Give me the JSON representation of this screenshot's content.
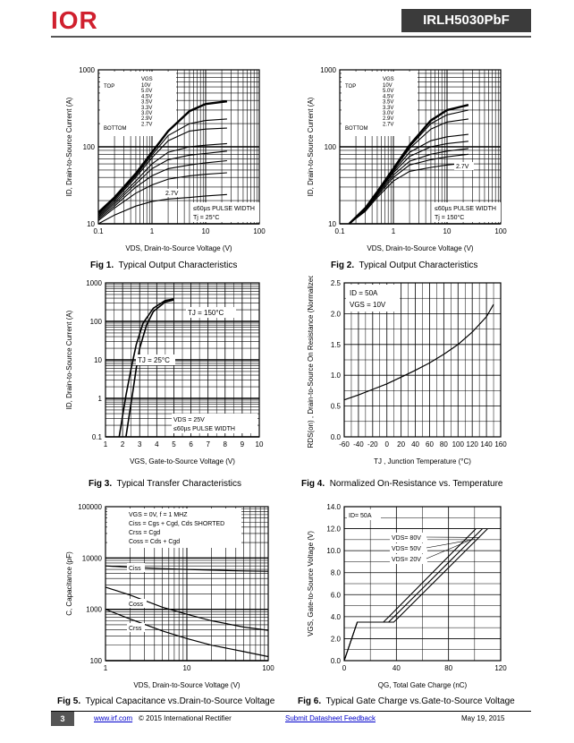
{
  "header": {
    "logo_text": "IOR",
    "part_number": "IRLH5030PbF"
  },
  "figures": [
    {
      "id": "fig1",
      "label": "Fig 1.",
      "caption": "Typical Output Characteristics"
    },
    {
      "id": "fig2",
      "label": "Fig 2.",
      "caption": "Typical Output Characteristics"
    },
    {
      "id": "fig3",
      "label": "Fig 3.",
      "caption": "Typical Transfer Characteristics"
    },
    {
      "id": "fig4",
      "label": "Fig 4.",
      "caption": "Normalized On-Resistance vs. Temperature"
    },
    {
      "id": "fig5",
      "label": "Fig 5.",
      "caption": "Typical Capacitance vs.Drain-to-Source Voltage"
    },
    {
      "id": "fig6",
      "label": "Fig 6.",
      "caption": "Typical Gate Charge vs.Gate-to-Source Voltage"
    }
  ],
  "footer": {
    "page": "3",
    "website": "www.irf.com",
    "copyright": "© 2015 International Rectifier",
    "feedback_link": "Submit Datasheet Feedback",
    "date": "May 19, 2015"
  },
  "chart_data": [
    {
      "type": "line",
      "title": "",
      "xlabel": "VDS, Drain-to-Source Voltage (V)",
      "ylabel": "ID, Drain-to-Source Current (A)",
      "xscale": "log",
      "yscale": "log",
      "xlim": [
        0.1,
        100
      ],
      "ylim": [
        10,
        1000
      ],
      "xticks": [
        "0.1",
        "1",
        "10",
        "100"
      ],
      "yticks": [
        "10",
        "100",
        "1000"
      ],
      "legend_title": "VGS",
      "legend_top": "TOP",
      "legend_bottom": "BOTTOM",
      "legend": [
        "10V",
        "5.0V",
        "4.5V",
        "3.5V",
        "3.3V",
        "3.0V",
        "2.9V",
        "2.7V"
      ],
      "annotations": [
        "2.7V",
        "≤60µs PULSE WIDTH",
        "Tj = 25°C"
      ],
      "series": [
        {
          "name": "10V",
          "x": [
            0.1,
            0.2,
            0.5,
            1,
            2,
            5,
            10,
            25
          ],
          "y": [
            14,
            22,
            45,
            85,
            160,
            290,
            360,
            390
          ]
        },
        {
          "name": "5.0V",
          "x": [
            0.1,
            0.2,
            0.5,
            1,
            2,
            5,
            10,
            25
          ],
          "y": [
            13.5,
            21,
            42,
            78,
            140,
            200,
            220,
            230
          ]
        },
        {
          "name": "4.5V",
          "x": [
            0.1,
            0.2,
            0.5,
            1,
            2,
            5,
            10,
            25
          ],
          "y": [
            13,
            20,
            40,
            72,
            120,
            160,
            170,
            175
          ]
        },
        {
          "name": "3.5V",
          "x": [
            0.1,
            0.2,
            0.5,
            1,
            2,
            5,
            10,
            25
          ],
          "y": [
            12.5,
            19,
            36,
            60,
            85,
            100,
            105,
            110
          ]
        },
        {
          "name": "3.3V",
          "x": [
            0.1,
            0.2,
            0.5,
            1,
            2,
            5,
            10,
            25
          ],
          "y": [
            12,
            18,
            33,
            52,
            68,
            78,
            82,
            88
          ]
        },
        {
          "name": "3.0V",
          "x": [
            0.1,
            0.2,
            0.5,
            1,
            2,
            5,
            10,
            25
          ],
          "y": [
            11.5,
            17,
            30,
            42,
            52,
            58,
            62,
            66
          ]
        },
        {
          "name": "2.9V",
          "x": [
            0.1,
            0.2,
            0.5,
            1,
            2,
            5,
            10,
            25
          ],
          "y": [
            11,
            16,
            25,
            32,
            38,
            42,
            44,
            46
          ]
        },
        {
          "name": "2.7V",
          "x": [
            0.1,
            0.2,
            0.5,
            1,
            2,
            5,
            10,
            25
          ],
          "y": [
            10,
            13,
            17,
            19.5,
            21,
            22,
            23,
            24
          ]
        }
      ]
    },
    {
      "type": "line",
      "title": "",
      "xlabel": "VDS, Drain-to-Source Voltage (V)",
      "ylabel": "ID, Drain-to-Source Current (A)",
      "xscale": "log",
      "yscale": "log",
      "xlim": [
        0.1,
        100
      ],
      "ylim": [
        10,
        1000
      ],
      "xticks": [
        "0.1",
        "1",
        "10",
        "100"
      ],
      "yticks": [
        "10",
        "100",
        "1000"
      ],
      "legend_title": "VGS",
      "legend_top": "TOP",
      "legend_bottom": "BOTTOM",
      "legend": [
        "10V",
        "5.0V",
        "4.5V",
        "3.5V",
        "3.3V",
        "3.0V",
        "2.9V",
        "2.7V"
      ],
      "annotations": [
        "2.7V",
        "≤60µs PULSE WIDTH",
        "Tj = 150°C"
      ],
      "series": [
        {
          "name": "10V",
          "x": [
            0.15,
            0.3,
            0.5,
            1,
            2,
            5,
            10,
            25
          ],
          "y": [
            10,
            16,
            26,
            52,
            105,
            220,
            300,
            350
          ]
        },
        {
          "name": "5.0V",
          "x": [
            0.15,
            0.3,
            0.5,
            1,
            2,
            5,
            10,
            25
          ],
          "y": [
            10,
            16,
            26,
            51,
            100,
            200,
            260,
            300
          ]
        },
        {
          "name": "4.5V",
          "x": [
            0.15,
            0.3,
            0.5,
            1,
            2,
            5,
            10,
            25
          ],
          "y": [
            10,
            16,
            25.5,
            50,
            95,
            170,
            210,
            230
          ]
        },
        {
          "name": "3.5V",
          "x": [
            0.15,
            0.3,
            0.5,
            1,
            2,
            5,
            10,
            25
          ],
          "y": [
            10,
            15.5,
            25,
            48,
            85,
            120,
            135,
            145
          ]
        },
        {
          "name": "3.3V",
          "x": [
            0.15,
            0.3,
            0.5,
            1,
            2,
            5,
            10,
            25
          ],
          "y": [
            10,
            15.5,
            25,
            46,
            75,
            100,
            110,
            118
          ]
        },
        {
          "name": "3.0V",
          "x": [
            0.15,
            0.3,
            0.5,
            1,
            2,
            5,
            10,
            25
          ],
          "y": [
            10,
            15,
            24,
            43,
            65,
            80,
            88,
            95
          ]
        },
        {
          "name": "2.9V",
          "x": [
            0.15,
            0.3,
            0.5,
            1,
            2,
            5,
            10,
            25
          ],
          "y": [
            10,
            15,
            23,
            40,
            58,
            68,
            74,
            80
          ]
        },
        {
          "name": "2.7V",
          "x": [
            0.15,
            0.3,
            0.5,
            1,
            2,
            5,
            10,
            25
          ],
          "y": [
            10,
            14.5,
            22,
            36,
            48,
            54,
            58,
            62
          ]
        }
      ]
    },
    {
      "type": "line",
      "title": "",
      "xlabel": "VGS, Gate-to-Source Voltage (V)",
      "ylabel": "ID, Drain-to-Source Current (A)",
      "xscale": "linear",
      "yscale": "log",
      "xlim": [
        1,
        10
      ],
      "ylim": [
        0.1,
        1000
      ],
      "xticks": [
        "1",
        "2",
        "3",
        "4",
        "5",
        "6",
        "7",
        "8",
        "9",
        "10"
      ],
      "yticks": [
        "0.1",
        "1",
        "10",
        "100",
        "1000"
      ],
      "annotations": [
        "TJ = 150°C",
        "TJ = 25°C",
        "VDS = 25V",
        "≤60µs PULSE WIDTH"
      ],
      "series": [
        {
          "name": "TJ = 150°C",
          "x": [
            1.8,
            2.0,
            2.2,
            2.5,
            2.8,
            3.2,
            3.8,
            4.5,
            5.0
          ],
          "y": [
            0.1,
            0.35,
            1.2,
            6,
            25,
            90,
            220,
            350,
            380
          ]
        },
        {
          "name": "TJ = 25°C",
          "x": [
            2.2,
            2.4,
            2.6,
            2.8,
            3.0,
            3.4,
            3.8,
            4.5,
            5.0
          ],
          "y": [
            0.1,
            0.4,
            1.5,
            6,
            20,
            80,
            180,
            320,
            360
          ]
        }
      ]
    },
    {
      "type": "line",
      "title": "",
      "xlabel": "TJ , Junction Temperature (°C)",
      "ylabel": "RDS(on) , Drain-to-Source On Resistance (Normalized)",
      "xscale": "linear",
      "yscale": "linear",
      "xlim": [
        -60,
        160
      ],
      "ylim": [
        0.0,
        2.5
      ],
      "xticks": [
        "-60",
        "-40",
        "-20",
        "0",
        "20",
        "40",
        "60",
        "80",
        "100",
        "120",
        "140",
        "160"
      ],
      "yticks": [
        "0.0",
        "0.5",
        "1.0",
        "1.5",
        "2.0",
        "2.5"
      ],
      "annotations": [
        "ID = 50A",
        "VGS = 10V"
      ],
      "series": [
        {
          "name": "",
          "x": [
            -60,
            -40,
            -20,
            0,
            20,
            40,
            60,
            80,
            100,
            120,
            140,
            150
          ],
          "y": [
            0.6,
            0.68,
            0.77,
            0.86,
            0.97,
            1.08,
            1.2,
            1.34,
            1.5,
            1.7,
            1.95,
            2.15
          ]
        }
      ]
    },
    {
      "type": "line",
      "title": "",
      "xlabel": "VDS, Drain-to-Source Voltage (V)",
      "ylabel": "C, Capacitance (pF)",
      "xscale": "log",
      "yscale": "log",
      "xlim": [
        1,
        100
      ],
      "ylim": [
        100,
        100000
      ],
      "xticks": [
        "1",
        "10",
        "100"
      ],
      "yticks": [
        "100",
        "1000",
        "10000",
        "100000"
      ],
      "legend_lines": [
        "VGS = 0V, f = 1 MHZ",
        "Ciss = Cgs + Cgd, Cds SHORTED",
        "Crss = Cgd",
        "Coss = Cds + Cgd"
      ],
      "series": [
        {
          "name": "Ciss",
          "x": [
            1,
            2,
            5,
            10,
            20,
            50,
            100
          ],
          "y": [
            7000,
            6600,
            6200,
            6000,
            5800,
            5600,
            5500
          ]
        },
        {
          "name": "Coss",
          "x": [
            1,
            2,
            5,
            10,
            20,
            50,
            100
          ],
          "y": [
            2700,
            1900,
            1100,
            800,
            600,
            450,
            390
          ]
        },
        {
          "name": "Crss",
          "x": [
            1,
            2,
            5,
            10,
            20,
            50,
            100
          ],
          "y": [
            1000,
            650,
            380,
            270,
            200,
            150,
            120
          ]
        }
      ]
    },
    {
      "type": "line",
      "title": "",
      "xlabel": "QG, Total Gate Charge (nC)",
      "ylabel": "VGS, Gate-to-Source Voltage (V)",
      "xscale": "linear",
      "yscale": "linear",
      "xlim": [
        0,
        120
      ],
      "ylim": [
        0.0,
        14.0
      ],
      "xticks": [
        "0",
        "40",
        "80",
        "120"
      ],
      "yticks": [
        "0.0",
        "2.0",
        "4.0",
        "6.0",
        "8.0",
        "10.0",
        "12.0",
        "14.0"
      ],
      "annotations": [
        "ID= 50A",
        "VDS= 80V",
        "VDS= 50V",
        "VDS= 20V"
      ],
      "series": [
        {
          "name": "VDS= 80V",
          "x": [
            0,
            10,
            12,
            38,
            44,
            110
          ],
          "y": [
            0,
            3.5,
            3.5,
            3.5,
            4.2,
            12
          ]
        },
        {
          "name": "VDS= 50V",
          "x": [
            0,
            10,
            12,
            34,
            40,
            106
          ],
          "y": [
            0,
            3.5,
            3.5,
            3.5,
            4.2,
            12
          ]
        },
        {
          "name": "VDS= 20V",
          "x": [
            0,
            10,
            12,
            30,
            36,
            101
          ],
          "y": [
            0,
            3.5,
            3.5,
            3.5,
            4.2,
            12
          ]
        }
      ]
    }
  ]
}
